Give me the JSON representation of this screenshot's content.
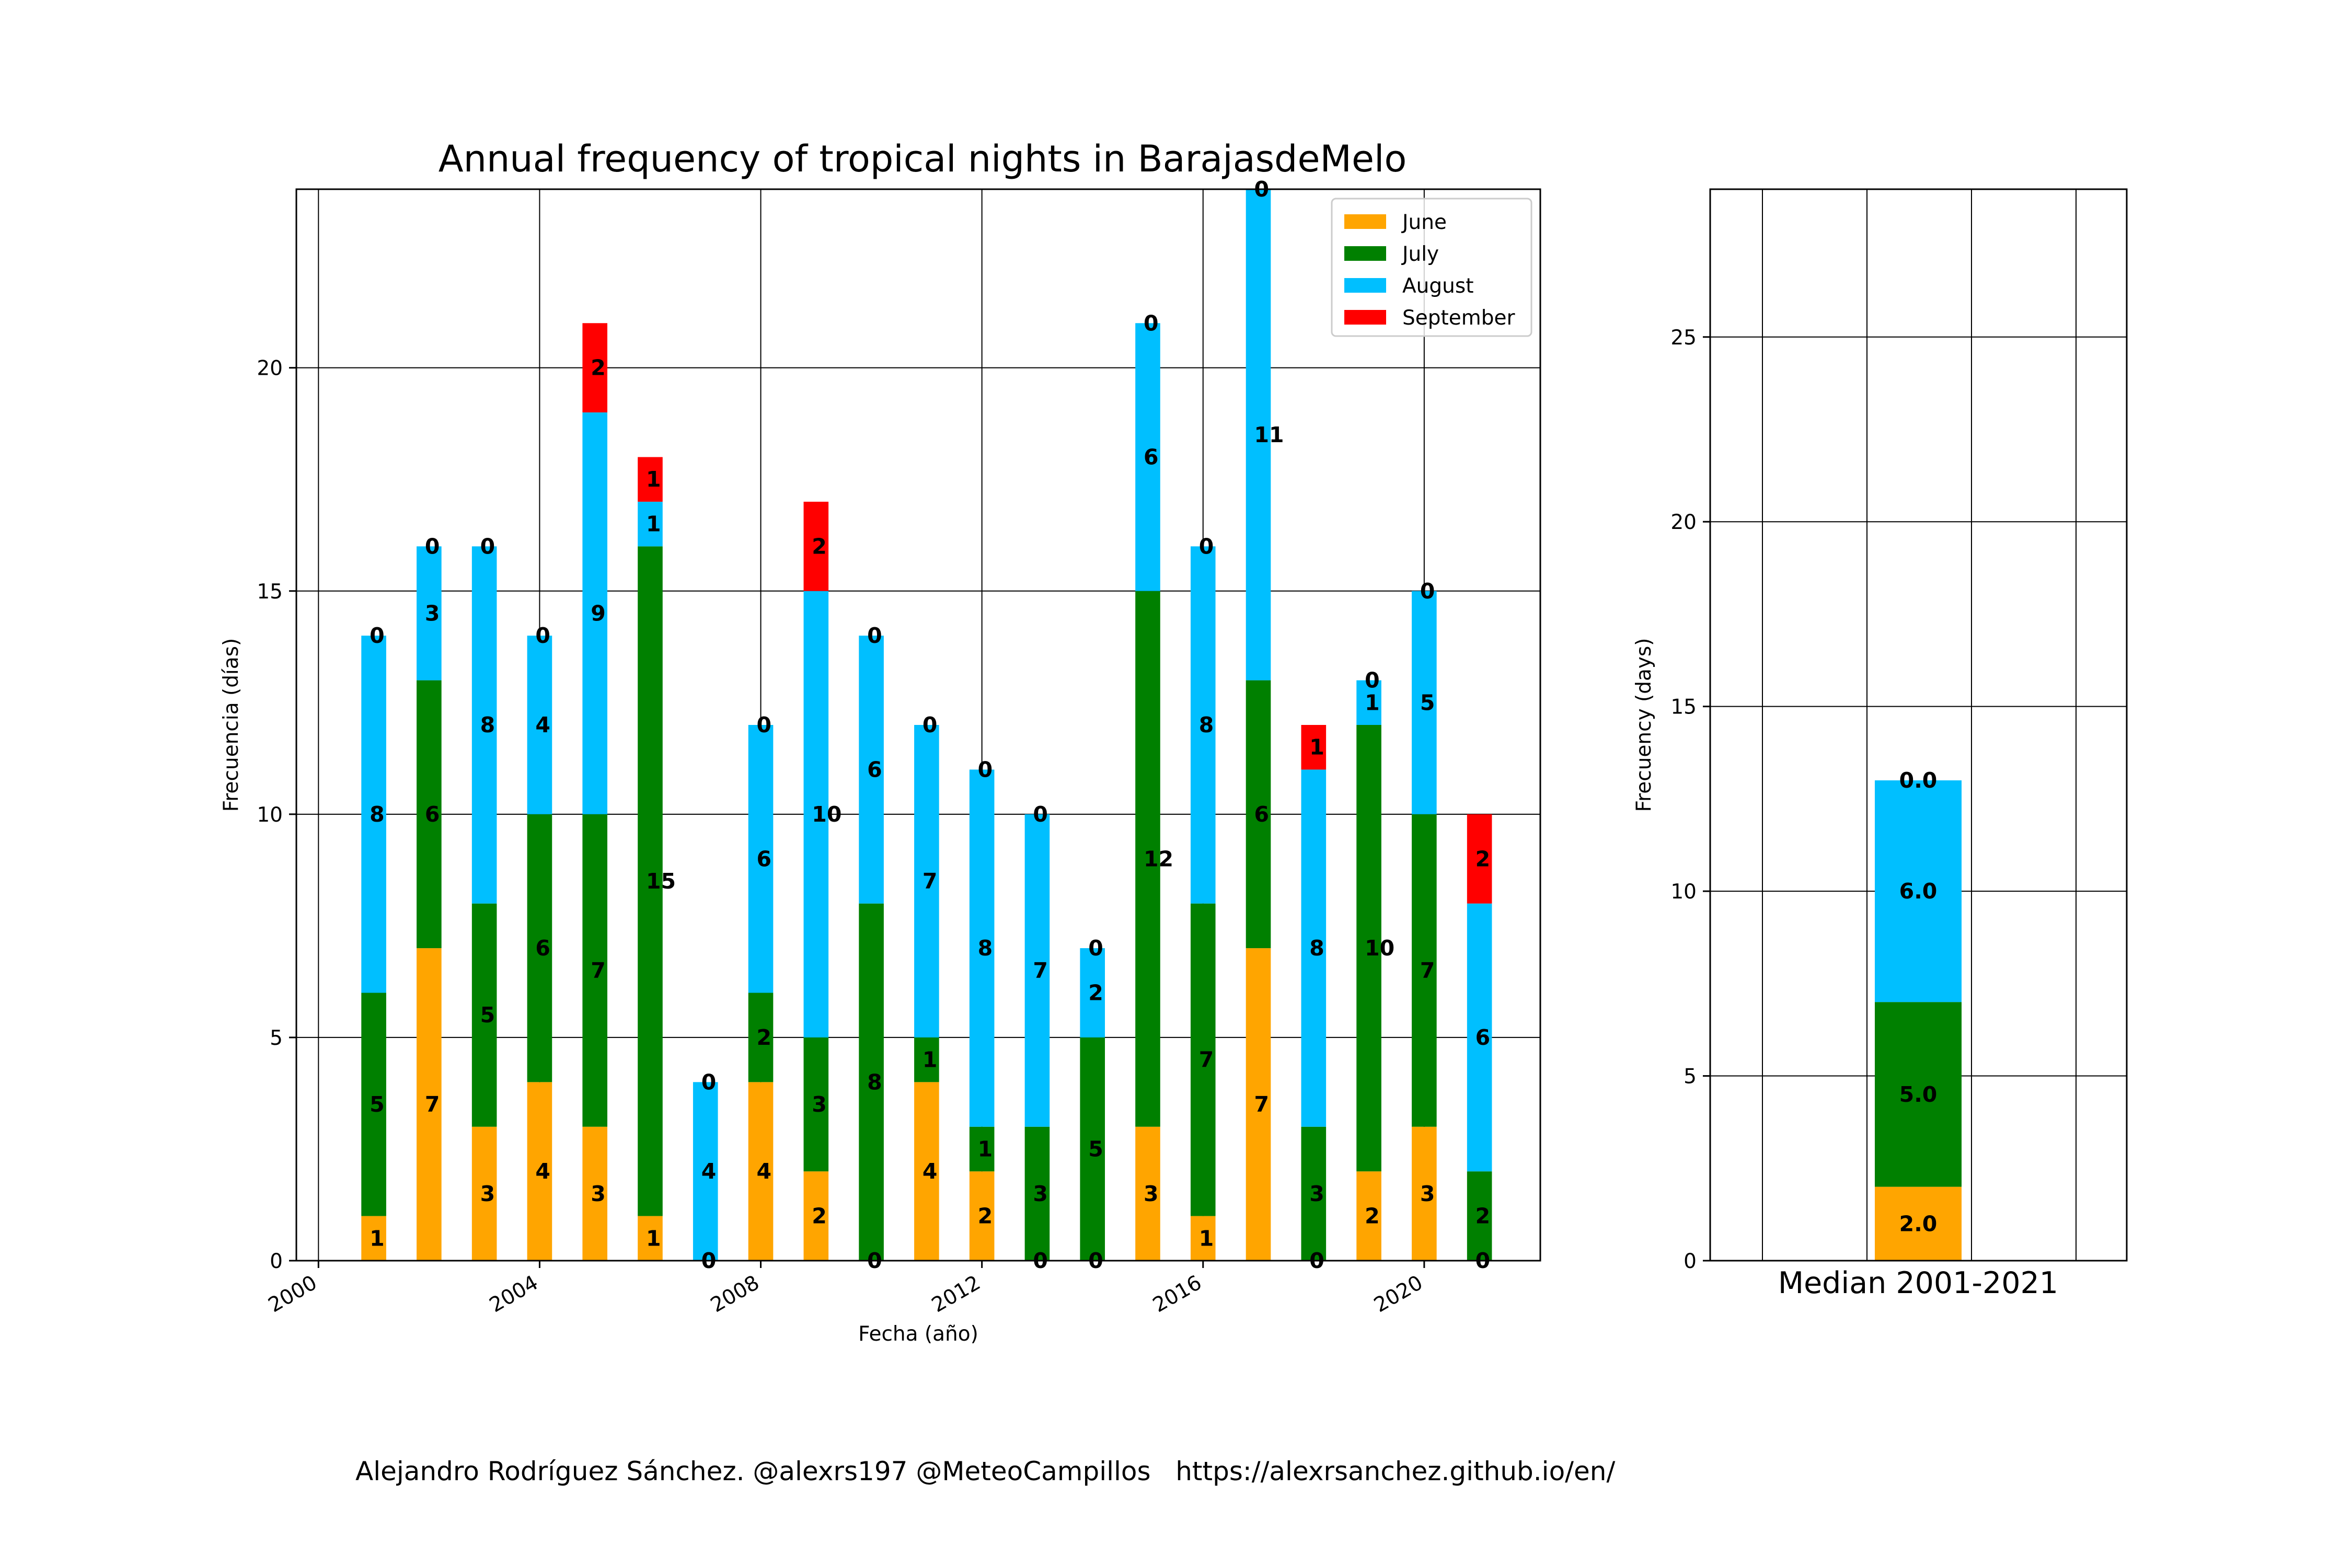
{
  "chart_data": [
    {
      "type": "bar",
      "stacked": true,
      "title": "Annual frequency of tropical nights in BarajasdeMelo",
      "xlabel": "Fecha (año)",
      "ylabel": "Frecuencia (días)",
      "x": [
        2001,
        2002,
        2003,
        2004,
        2005,
        2006,
        2007,
        2008,
        2009,
        2010,
        2011,
        2012,
        2013,
        2014,
        2015,
        2016,
        2017,
        2018,
        2019,
        2020,
        2021
      ],
      "xlim": [
        1999.6,
        2022.1
      ],
      "ylim": [
        0,
        24
      ],
      "xticks": [
        2000,
        2004,
        2008,
        2012,
        2016,
        2020
      ],
      "yticks": [
        0,
        5,
        10,
        15,
        20
      ],
      "grid": true,
      "legend_position": "top-right",
      "series": [
        {
          "name": "June",
          "color": "#FFA500",
          "values": [
            1,
            7,
            3,
            4,
            3,
            1,
            0,
            4,
            2,
            0,
            4,
            2,
            0,
            0,
            3,
            1,
            7,
            0,
            2,
            3,
            0
          ]
        },
        {
          "name": "July",
          "color": "#008000",
          "values": [
            5,
            6,
            5,
            6,
            7,
            15,
            0,
            2,
            3,
            8,
            1,
            1,
            3,
            5,
            12,
            7,
            6,
            3,
            10,
            7,
            2
          ]
        },
        {
          "name": "August",
          "color": "#00BFFF",
          "values": [
            8,
            3,
            8,
            4,
            9,
            1,
            4,
            6,
            10,
            6,
            7,
            8,
            7,
            2,
            6,
            8,
            11,
            8,
            1,
            5,
            6
          ]
        },
        {
          "name": "September",
          "color": "#FF0000",
          "values": [
            0,
            0,
            0,
            0,
            2,
            1,
            0,
            0,
            2,
            0,
            0,
            0,
            0,
            0,
            0,
            0,
            0,
            1,
            0,
            0,
            2
          ]
        }
      ],
      "label_decimals": 0
    },
    {
      "type": "bar",
      "stacked": true,
      "title": "",
      "xlabel": "",
      "ylabel": "Frecuency (days)",
      "categories": [
        "Median 2001-2021"
      ],
      "ylim": [
        0,
        29
      ],
      "yticks": [
        0,
        5,
        10,
        15,
        20,
        25
      ],
      "grid": true,
      "series": [
        {
          "name": "June",
          "color": "#FFA500",
          "values": [
            2.0
          ]
        },
        {
          "name": "July",
          "color": "#008000",
          "values": [
            5.0
          ]
        },
        {
          "name": "August",
          "color": "#00BFFF",
          "values": [
            6.0
          ]
        },
        {
          "name": "September",
          "color": "#FF0000",
          "values": [
            0.0
          ]
        }
      ],
      "label_decimals": 1
    }
  ],
  "footer": "Alejandro Rodríguez Sánchez. @alexrs197 @MeteoCampillos   https://alexrsanchez.github.io/en/"
}
